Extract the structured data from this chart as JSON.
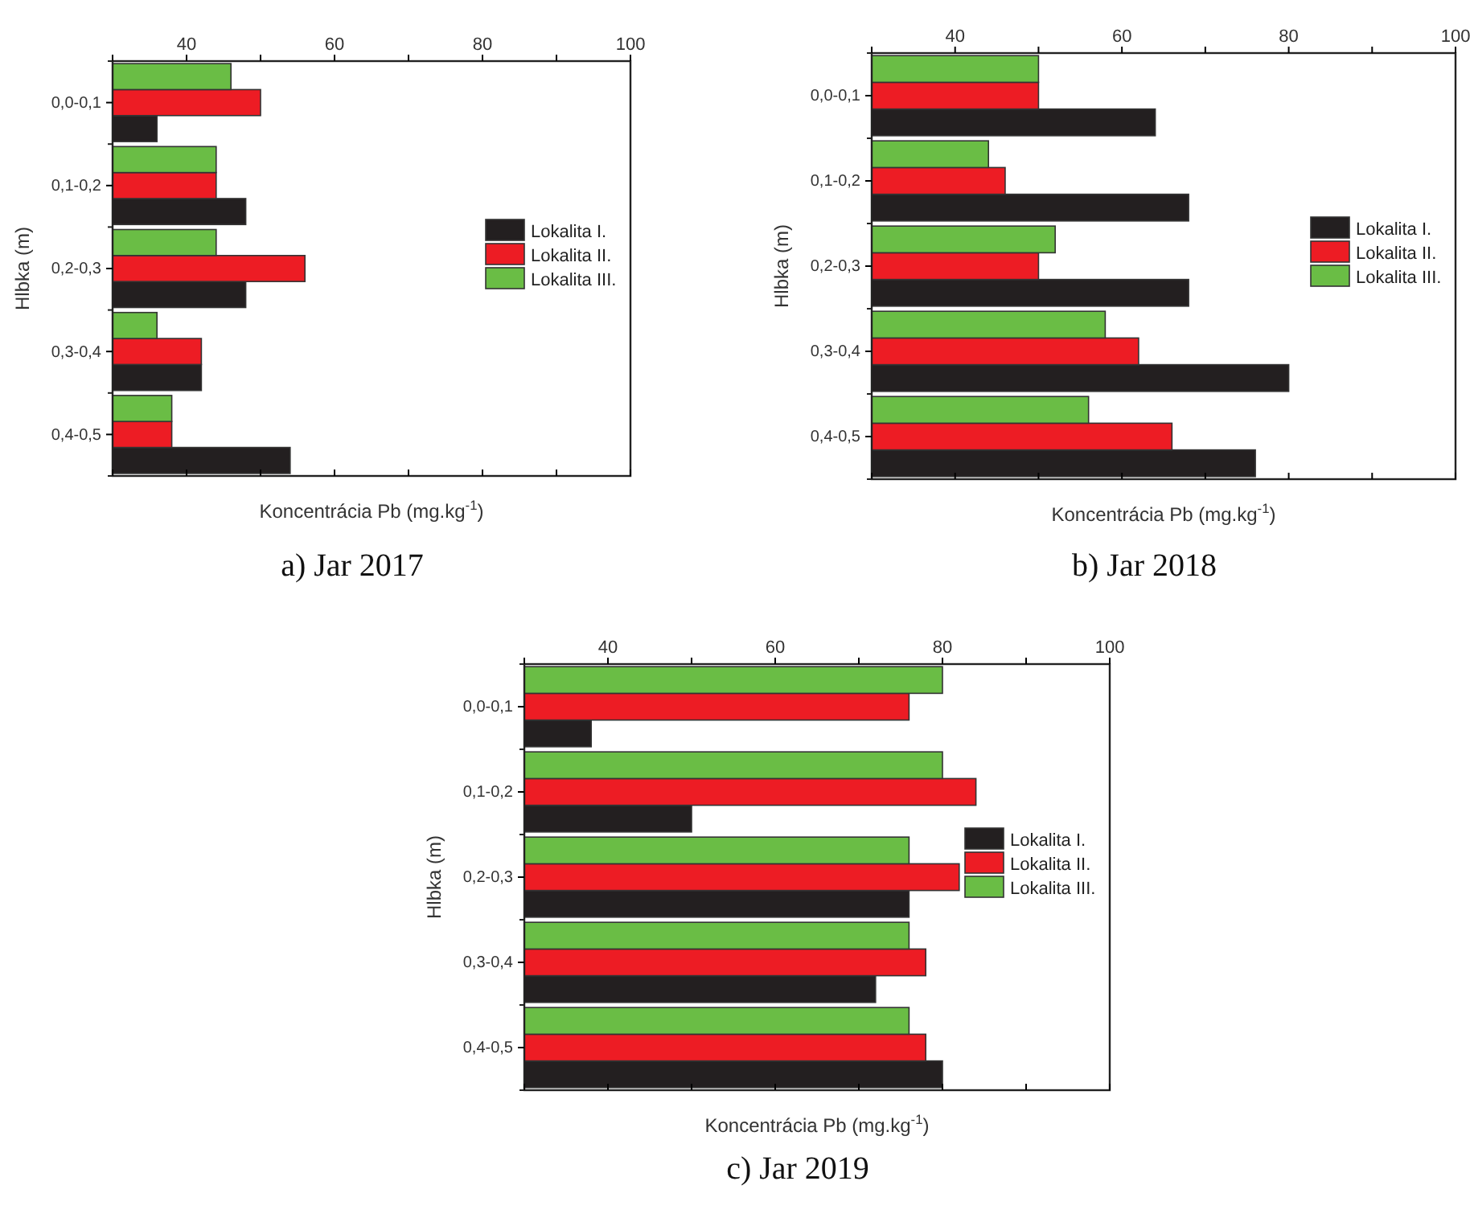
{
  "chart_data": [
    {
      "type": "bar",
      "orientation": "horizontal",
      "categories": [
        "0,0-0,1",
        "0,1-0,2",
        "0,2-0,3",
        "0,3-0,4",
        "0,4-0,5"
      ],
      "series": [
        {
          "name": "Lokalita I.",
          "color": "#231f20",
          "values": [
            36,
            48,
            48,
            42,
            54
          ]
        },
        {
          "name": "Lokalita II.",
          "color": "#ed1c24",
          "values": [
            50,
            44,
            56,
            42,
            38
          ]
        },
        {
          "name": "Lokalita III.",
          "color": "#6abd45",
          "values": [
            46,
            44,
            44,
            36,
            38
          ]
        }
      ],
      "xlim": [
        30,
        100
      ],
      "xticks": [
        {
          "value": 30,
          "label": null
        },
        40,
        {
          "value": 50,
          "label": null
        },
        60,
        {
          "value": 70,
          "label": null
        },
        80,
        {
          "value": 90,
          "label": null
        },
        100
      ],
      "xlabel": "Koncentrácia Pb (mg.kg$^{-1}$)",
      "ylabel": "Hlbka (m)",
      "legend": "right",
      "annotations": [
        "a) Jar 2017"
      ]
    },
    {
      "type": "bar",
      "orientation": "horizontal",
      "categories": [
        "0,0-0,1",
        "0,1-0,2",
        "0,2-0,3",
        "0,3-0,4",
        "0,4-0,5"
      ],
      "series": [
        {
          "name": "Lokalita I.",
          "color": "#231f20",
          "values": [
            64,
            68,
            68,
            80,
            76
          ]
        },
        {
          "name": "Lokalita II.",
          "color": "#ed1c24",
          "values": [
            50,
            46,
            50,
            62,
            66
          ]
        },
        {
          "name": "Lokalita III.",
          "color": "#6abd45",
          "values": [
            50,
            44,
            52,
            58,
            56
          ]
        }
      ],
      "xlim": [
        30,
        100
      ],
      "xticks": [
        {
          "value": 30,
          "label": null
        },
        40,
        {
          "value": 50,
          "label": null
        },
        60,
        {
          "value": 70,
          "label": null
        },
        80,
        {
          "value": 90,
          "label": null
        },
        100
      ],
      "xlabel": "Koncentrácia Pb (mg.kg$^{-1}$)",
      "ylabel": "Hlbka (m)",
      "legend": "right",
      "annotations": [
        "b) Jar 2018"
      ]
    },
    {
      "type": "bar",
      "orientation": "horizontal",
      "categories": [
        "0,0-0,1",
        "0,1-0,2",
        "0,2-0,3",
        "0,3-0,4",
        "0,4-0,5"
      ],
      "series": [
        {
          "name": "Lokalita I.",
          "color": "#231f20",
          "values": [
            38,
            50,
            76,
            72,
            80
          ]
        },
        {
          "name": "Lokalita II.",
          "color": "#ed1c24",
          "values": [
            76,
            84,
            82,
            78,
            78
          ]
        },
        {
          "name": "Lokalita III.",
          "color": "#6abd45",
          "values": [
            80,
            80,
            76,
            76,
            76
          ]
        }
      ],
      "xlim": [
        30,
        100
      ],
      "xticks": [
        {
          "value": 30,
          "label": null
        },
        40,
        {
          "value": 50,
          "label": null
        },
        60,
        {
          "value": 70,
          "label": null
        },
        80,
        {
          "value": 90,
          "label": null
        },
        100
      ],
      "xlabel": "Koncentrácia Pb (mg.kg$^{-1}$)",
      "ylabel": "Hlbka (m)",
      "legend": "right",
      "annotations": [
        "c) Jar 2019"
      ]
    }
  ]
}
